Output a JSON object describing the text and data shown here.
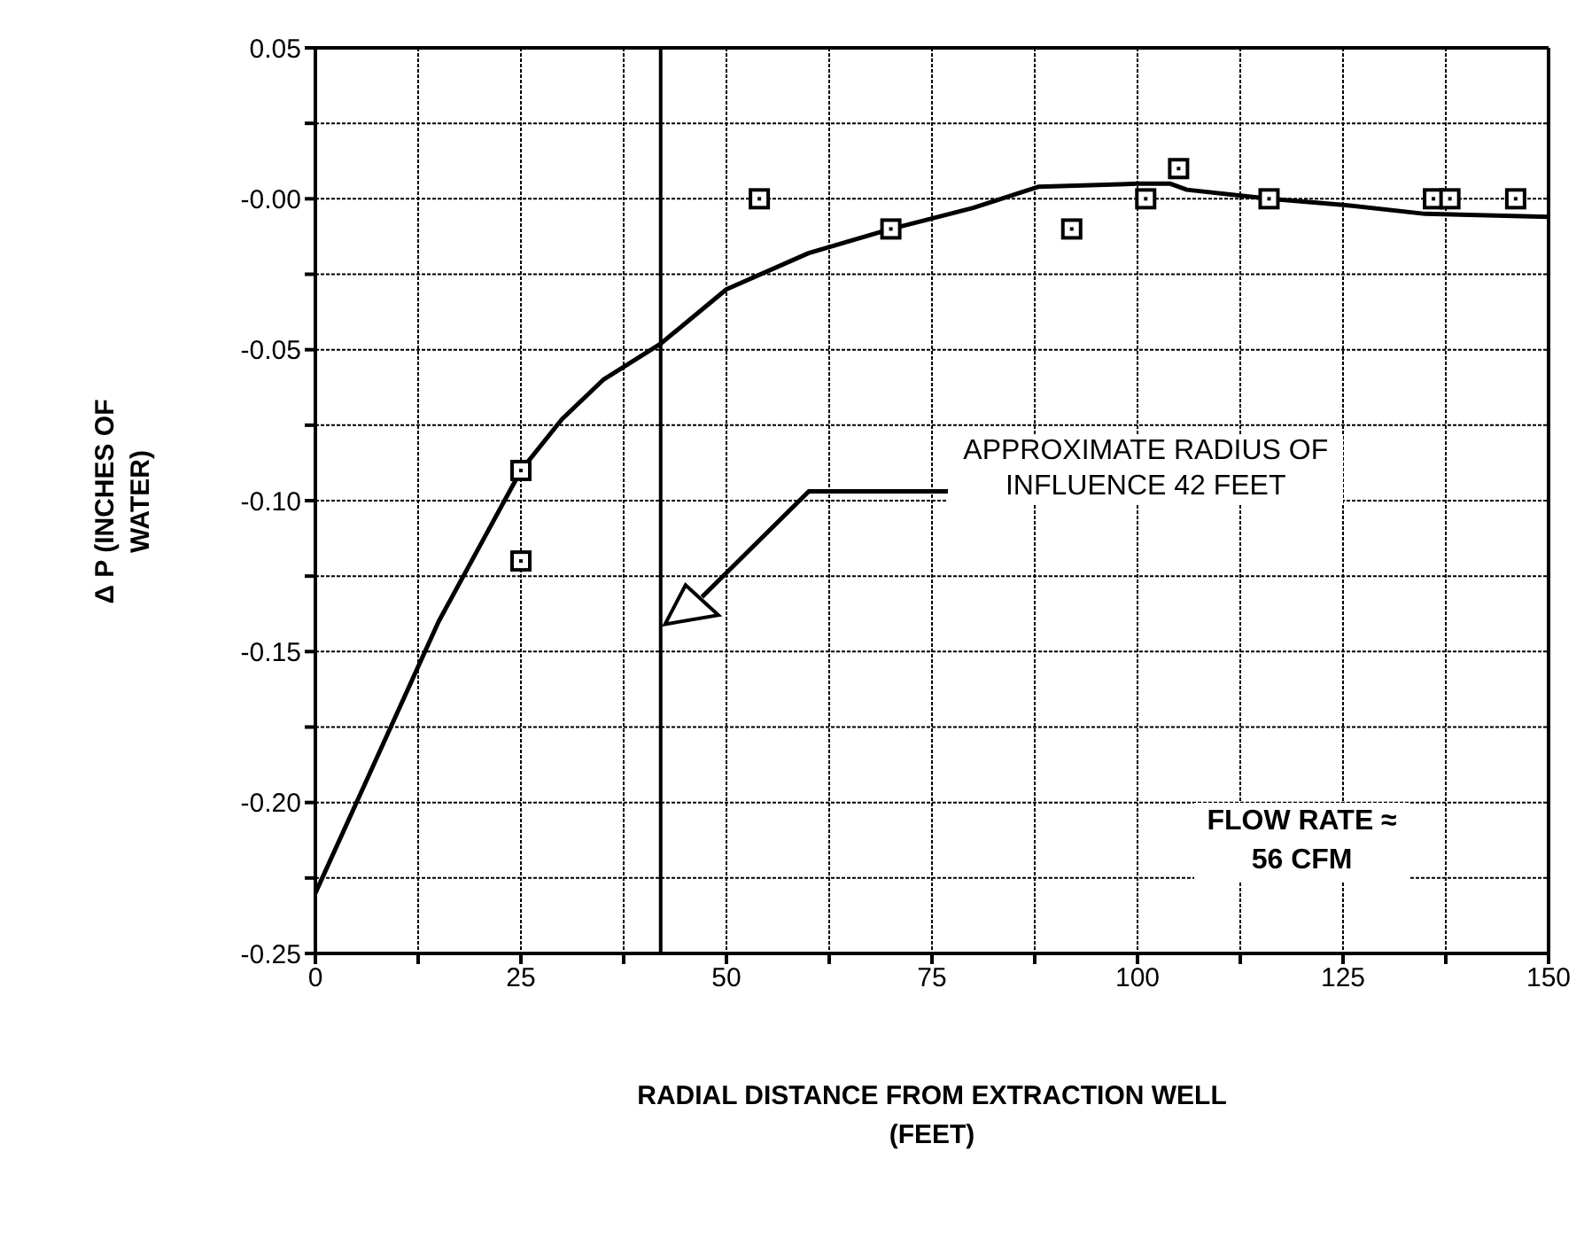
{
  "chart_data": {
    "type": "scatter",
    "xlabel": "RADIAL DISTANCE FROM EXTRACTION WELL (FEET)",
    "ylabel": "Δ P (INCHES OF WATER)",
    "xlim": [
      0,
      150
    ],
    "ylim": [
      -0.25,
      0.05
    ],
    "xticks": [
      0,
      {
        "value": 12.5,
        "label": null
      },
      25,
      {
        "value": 37.5,
        "label": null
      },
      50,
      {
        "value": 62.5,
        "label": null
      },
      75,
      {
        "value": 87.5,
        "label": null
      },
      100,
      {
        "value": 112.5,
        "label": null
      },
      125,
      {
        "value": 137.5,
        "label": null
      },
      150
    ],
    "yticks": [
      {
        "value": -0.25,
        "label": "-0.25"
      },
      {
        "value": -0.225,
        "label": null
      },
      {
        "value": -0.2,
        "label": "-0.20"
      },
      {
        "value": -0.175,
        "label": null
      },
      {
        "value": -0.15,
        "label": "-0.15"
      },
      {
        "value": -0.125,
        "label": null
      },
      {
        "value": -0.1,
        "label": "-0.10"
      },
      {
        "value": -0.075,
        "label": null
      },
      {
        "value": -0.05,
        "label": "-0.05"
      },
      {
        "value": -0.025,
        "label": null
      },
      {
        "value": 0,
        "label": "-0.00"
      },
      {
        "value": 0.025,
        "label": null
      },
      {
        "value": 0.05,
        "label": "0.05"
      }
    ],
    "grid": true,
    "legend": false,
    "series": [
      {
        "color": "#000000",
        "marker": "square",
        "x": [
          25,
          25,
          54,
          70,
          92,
          101,
          105,
          116,
          136,
          138,
          146
        ],
        "values": [
          -0.09,
          -0.12,
          0,
          -0.01,
          -0.01,
          0,
          0.01,
          0,
          0,
          0,
          0
        ]
      },
      {
        "type": "line",
        "color": "#000000",
        "marker": "none",
        "line_style": "solid",
        "x": [
          0,
          5,
          10,
          15,
          20,
          25,
          30,
          35,
          42,
          50,
          60,
          70,
          80,
          88,
          100,
          104,
          106,
          116,
          125,
          135,
          150
        ],
        "values": [
          -0.23,
          -0.2,
          -0.17,
          -0.14,
          -0.115,
          -0.09,
          -0.073,
          -0.06,
          -0.048,
          -0.03,
          -0.018,
          -0.01,
          -0.003,
          0.004,
          0.005,
          0.005,
          0.003,
          0,
          -0.002,
          -0.005,
          -0.006
        ]
      }
    ],
    "ref_lines": [
      {
        "axis": "x",
        "value": 42,
        "color": "#000000"
      }
    ],
    "annotations": [
      "APPROXIMATE RADIUS OF INFLUENCE 42 FEET",
      "FLOW RATE ≈ 56 CFM"
    ]
  }
}
